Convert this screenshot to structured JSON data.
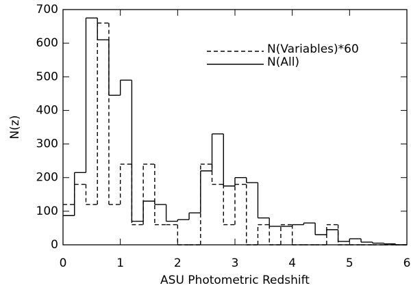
{
  "chart_data": {
    "type": "histogram",
    "xlabel": "ASU Photometric Redshift",
    "ylabel": "N(z)",
    "bins": [
      0,
      0.2,
      0.4,
      0.6,
      0.8,
      1.0,
      1.2,
      1.4,
      1.6,
      1.8,
      2.0,
      2.2,
      2.4,
      2.6,
      2.8,
      3.0,
      3.2,
      3.4,
      3.6,
      3.8,
      4.0,
      4.2,
      4.4,
      4.6,
      4.8,
      5.0,
      5.2,
      5.4,
      5.6,
      5.8,
      6.0
    ],
    "series": [
      {
        "name": "N(Variables)*60",
        "color": "#000000",
        "dash": "6,4",
        "values": [
          120,
          180,
          120,
          660,
          120,
          240,
          60,
          240,
          60,
          60,
          0,
          0,
          240,
          180,
          60,
          180,
          0,
          60,
          0,
          60,
          0,
          0,
          0,
          60,
          0,
          0,
          0,
          0,
          0,
          0
        ]
      },
      {
        "name": "N(All)",
        "color": "#000000",
        "dash": "none",
        "values": [
          87,
          215,
          675,
          610,
          445,
          490,
          70,
          130,
          120,
          70,
          75,
          95,
          220,
          330,
          175,
          200,
          185,
          80,
          55,
          55,
          60,
          65,
          30,
          45,
          10,
          18,
          8,
          5,
          3,
          0
        ]
      }
    ],
    "xlim": [
      0,
      6
    ],
    "xticks": [
      0,
      1,
      2,
      3,
      4,
      5,
      6
    ],
    "ylim": [
      0,
      700
    ],
    "yticks": [
      0,
      100,
      200,
      300,
      400,
      500,
      600,
      700
    ]
  }
}
